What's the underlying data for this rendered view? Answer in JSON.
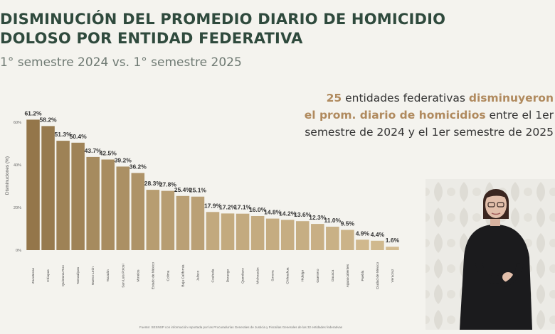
{
  "header": {
    "title_line1": "DISMINUCIÓN DEL PROMEDIO DIARIO DE HOMICIDIO",
    "title_line2": "DOLOSO POR ENTIDAD FEDERATIVA",
    "subtitle": "1° semestre 2024 vs. 1° semestre 2025"
  },
  "callout": {
    "count": "25",
    "line1_rest": " entidades federativas ",
    "verb": "disminuyeron",
    "line2_hl": "el prom. diario de homicidios",
    "line2_rest": " entre el 1er",
    "line3": "semestre de 2024 y el 1er semestre de 2025"
  },
  "source_note": "Fuente: SESNSP con información reportada por las Procuradurías Generales de Justicia y Fiscalías Generales de las 32 entidades federativas",
  "colors": {
    "bar_dark": "#94764a",
    "bar_light": "#d3bc91",
    "title": "#2f4a3d",
    "accent": "#b08a5e"
  },
  "chart_data": {
    "type": "bar",
    "ylabel": "Disminuciones (%)",
    "ylim": [
      0,
      70
    ],
    "yticks": [
      0,
      20,
      40,
      60
    ],
    "ytick_labels": [
      "0%",
      "20%",
      "40%",
      "60%"
    ],
    "grid": false,
    "categories": [
      "Zacatecas",
      "Chiapas",
      "Quintana Roo",
      "Tamaulipas",
      "Nuevo León",
      "Yucatán",
      "San Luis Potosí",
      "Morelos",
      "Estado de México",
      "Colima",
      "Baja California",
      "Jalisco",
      "Coahuila",
      "Durango",
      "Querétaro",
      "Michoacán",
      "Sonora",
      "Chihuahua",
      "Hidalgo",
      "Guerrero",
      "Oaxaca",
      "Aguascalientes",
      "Puebla",
      "Ciudad de México",
      "Veracruz"
    ],
    "values": [
      61.2,
      58.2,
      51.3,
      50.4,
      43.7,
      42.5,
      39.2,
      36.2,
      28.3,
      27.8,
      25.4,
      25.1,
      17.9,
      17.2,
      17.1,
      16.0,
      14.8,
      14.2,
      13.6,
      12.3,
      11.0,
      9.5,
      4.9,
      4.4,
      1.6
    ],
    "value_labels": [
      "61.2%",
      "58.2%",
      "51.3%",
      "50.4%",
      "43.7%",
      "42.5%",
      "39.2%",
      "36.2%",
      "28.3%",
      "27.8%",
      "25.4%",
      "25.1%",
      "17.9%",
      "17.2%",
      "17.1%",
      "16.0%",
      "14.8%",
      "14.2%",
      "13.6%",
      "12.3%",
      "11.0%",
      "9.5%",
      "4.9%",
      "4.4%",
      "1.6%"
    ]
  }
}
